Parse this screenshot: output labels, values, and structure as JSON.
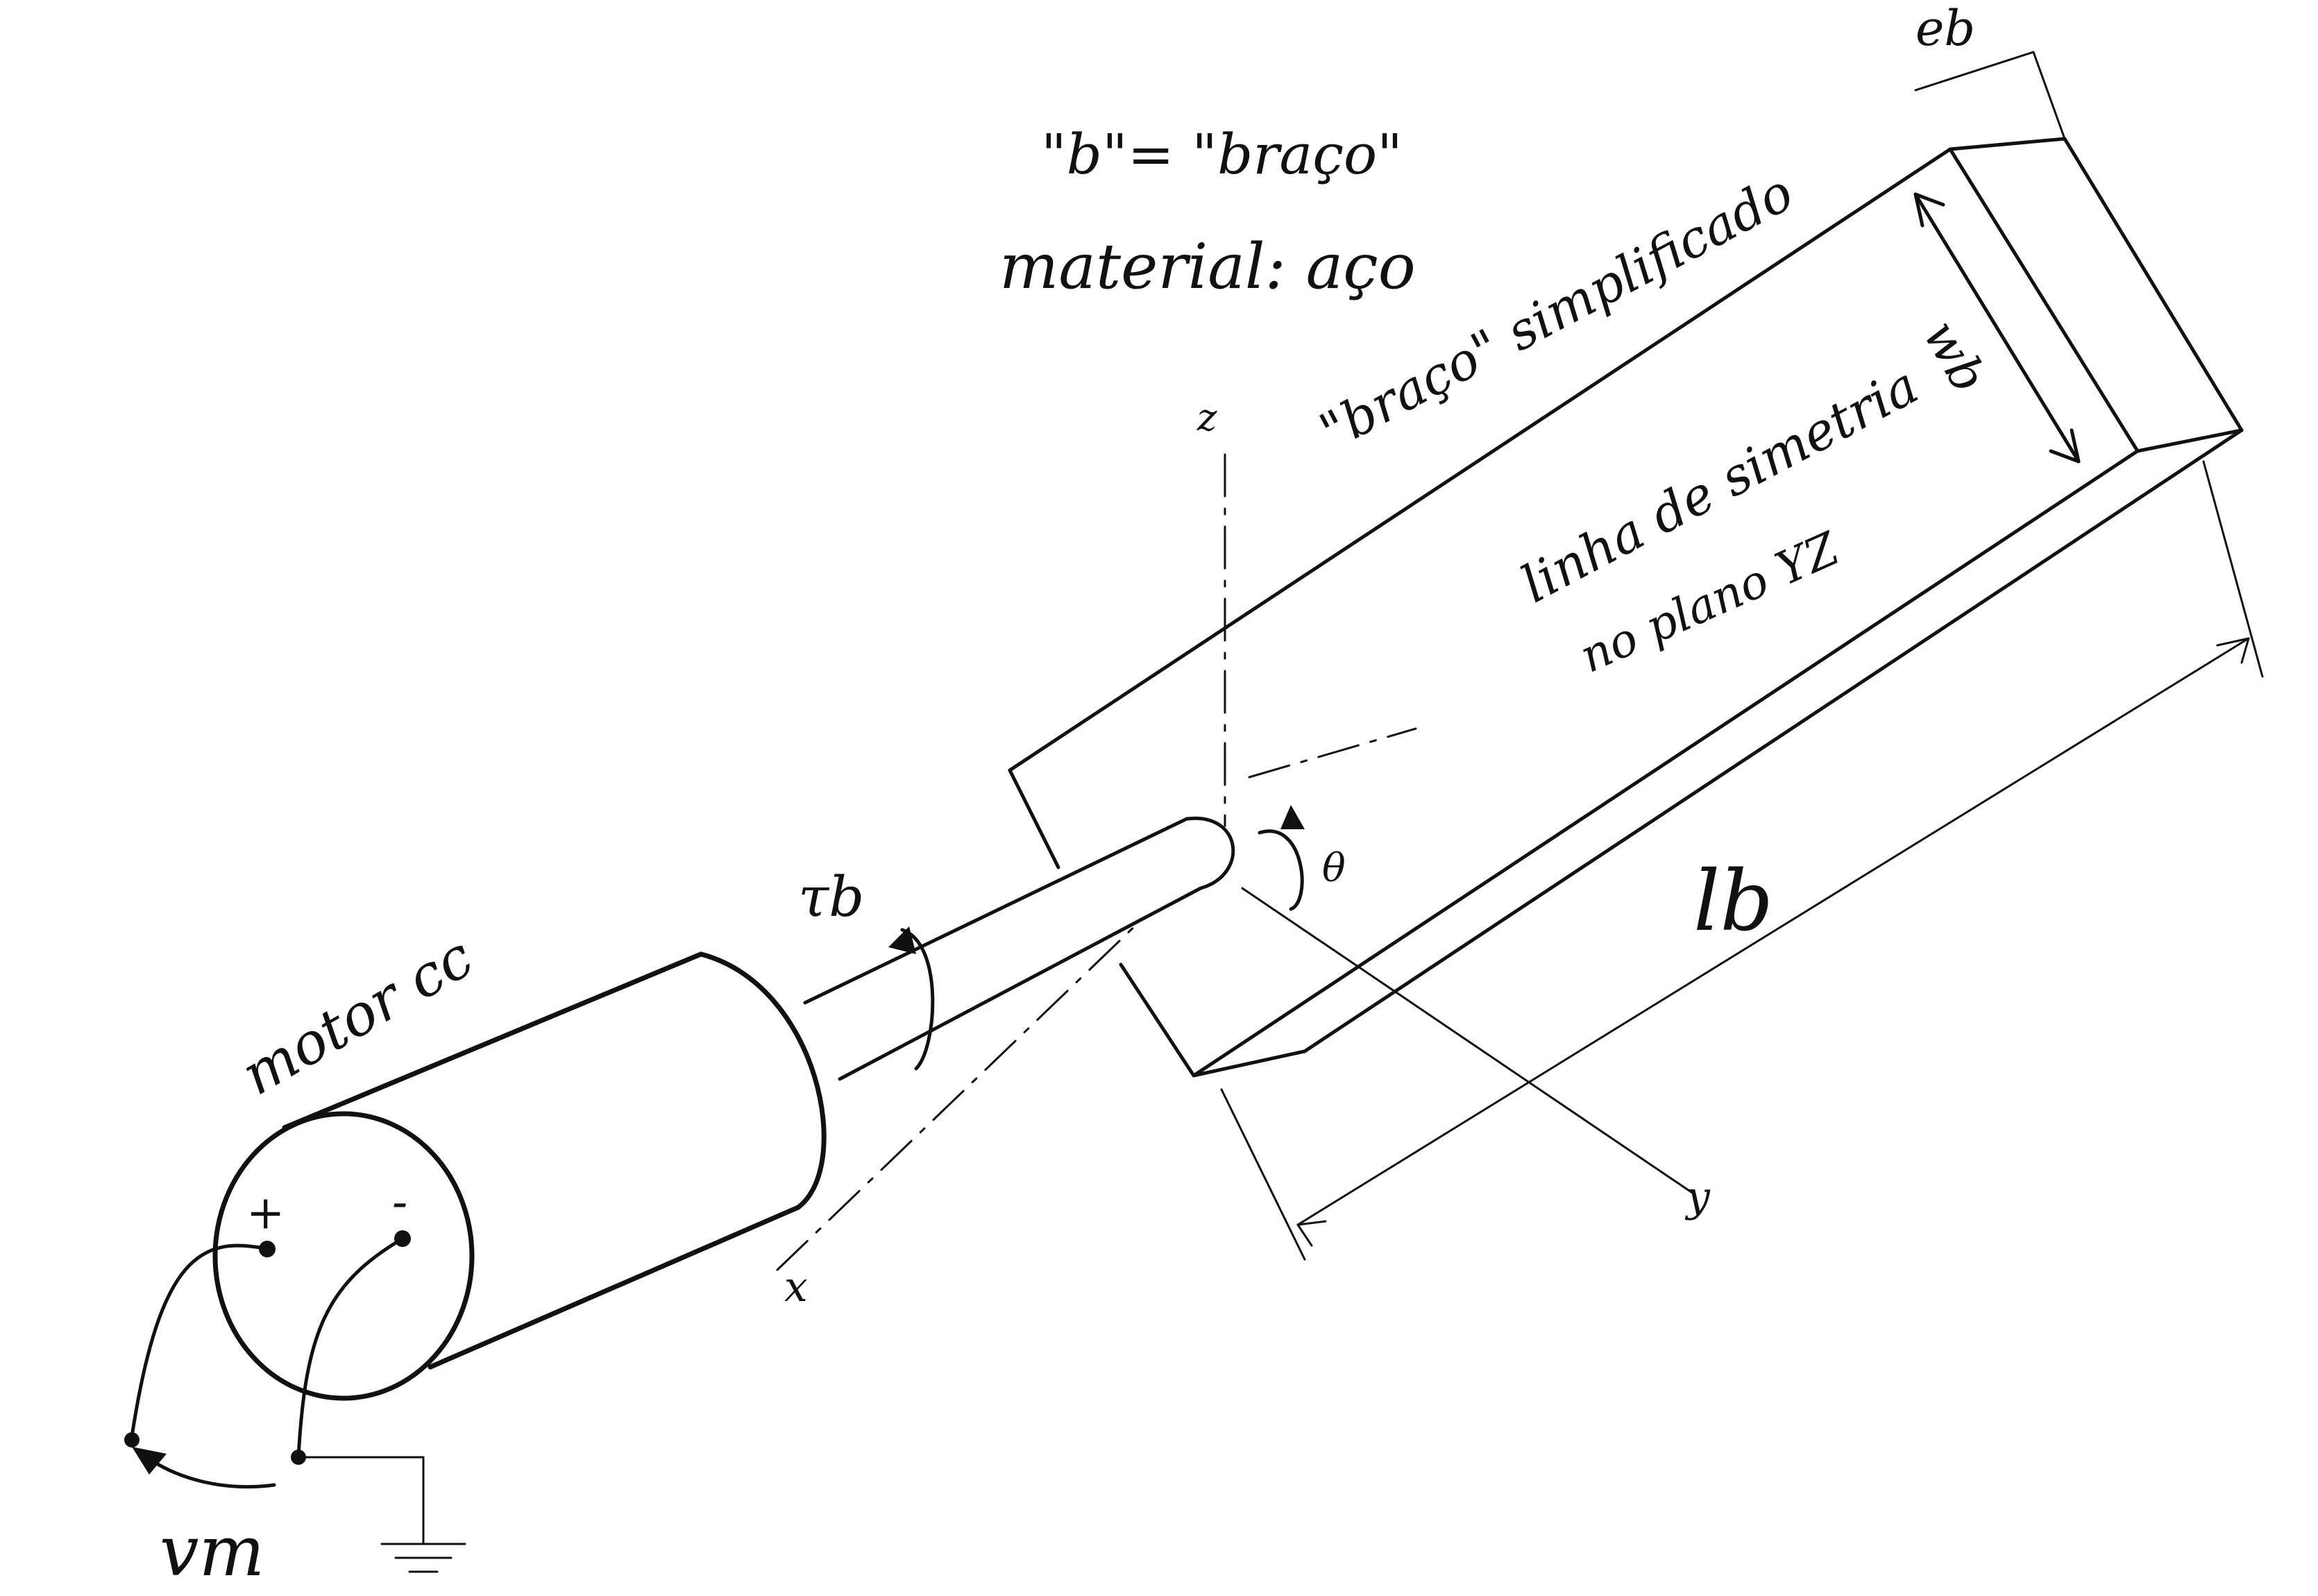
{
  "labels": {
    "b_def": "\"b\"= \"braço\"",
    "material": "material: aço",
    "braco": "\"braço\" simplificado",
    "linha": "linha de simetria",
    "plano": "no plano YZ",
    "motor": "motor cc",
    "torque": "τb",
    "theta": "θ",
    "lb": "lb",
    "wb": "wb",
    "eb": "eb",
    "axis_x": "x",
    "axis_y": "y",
    "axis_z": "z",
    "plus": "+",
    "minus": "-",
    "vm": "vm"
  }
}
